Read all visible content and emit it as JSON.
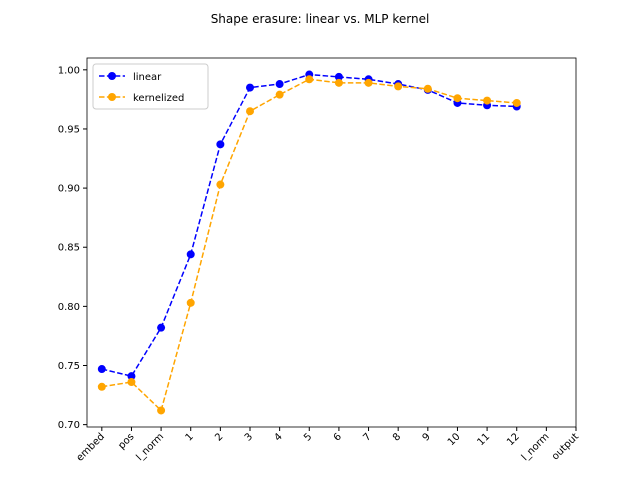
{
  "chart_data": {
    "type": "line",
    "title": "Shape erasure: linear vs. MLP kernel",
    "categories": [
      "embed",
      "pos",
      "l_norm",
      "1",
      "2",
      "3",
      "4",
      "5",
      "6",
      "7",
      "8",
      "9",
      "10",
      "11",
      "12",
      "l_norm",
      "output"
    ],
    "series": [
      {
        "name": "linear",
        "color": "#0000ff",
        "values": [
          0.747,
          0.741,
          0.782,
          0.844,
          0.937,
          0.985,
          0.988,
          0.996,
          0.994,
          0.992,
          0.988,
          0.983,
          0.972,
          0.97,
          0.969,
          null,
          null
        ]
      },
      {
        "name": "kernelized",
        "color": "#ffa500",
        "values": [
          0.732,
          0.736,
          0.712,
          0.803,
          0.903,
          0.965,
          0.979,
          0.992,
          0.989,
          0.989,
          0.986,
          0.984,
          0.976,
          0.974,
          0.972,
          null,
          null
        ]
      }
    ],
    "ylim": [
      0.698,
      1.01
    ],
    "yticks": [
      {
        "value": 0.7,
        "label": "0.70"
      },
      {
        "value": 0.75,
        "label": "0.75"
      },
      {
        "value": 0.8,
        "label": "0.80"
      },
      {
        "value": 0.85,
        "label": "0.85"
      },
      {
        "value": 0.9,
        "label": "0.90"
      },
      {
        "value": 0.95,
        "label": "0.95"
      },
      {
        "value": 1.0,
        "label": "1.00"
      }
    ],
    "line_style": "dashed",
    "legend": "upper left",
    "grid": false
  }
}
